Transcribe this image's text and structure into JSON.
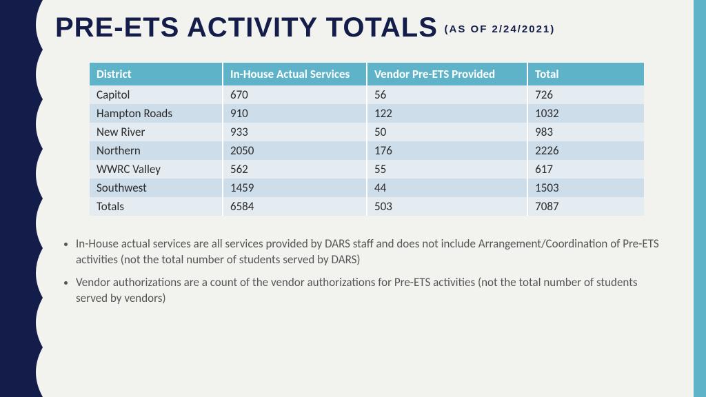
{
  "colors": {
    "navy": "#141c4a",
    "teal": "#5eb3c9",
    "bg": "#f2f2ef",
    "row_light": "#e4ecf1",
    "row_dark": "#cdddea",
    "header_text": "#ffffff",
    "body_text": "#555555"
  },
  "title": "PRE-ETS ACTIVITY TOTALS",
  "subtitle": "(AS OF 2/24/2021)",
  "table": {
    "columns": [
      "District",
      "In-House Actual Services",
      "Vendor Pre-ETS Provided",
      "Total"
    ],
    "rows": [
      [
        "Capitol",
        "670",
        "56",
        "726"
      ],
      [
        "Hampton Roads",
        "910",
        "122",
        "1032"
      ],
      [
        "New River",
        "933",
        "50",
        "983"
      ],
      [
        "Northern",
        "2050",
        "176",
        "2226"
      ],
      [
        "WWRC Valley",
        "562",
        "55",
        "617"
      ],
      [
        "Southwest",
        "1459",
        "44",
        "1503"
      ],
      [
        "Totals",
        "6584",
        "503",
        "7087"
      ]
    ]
  },
  "bullets": [
    "In-House actual services are all services provided by DARS staff and does not include Arrangement/Coordination of Pre-ETS activities (not the total number of students served by DARS)",
    "Vendor authorizations are a count of the vendor authorizations for Pre-ETS activities (not the total number of students served by vendors)"
  ]
}
